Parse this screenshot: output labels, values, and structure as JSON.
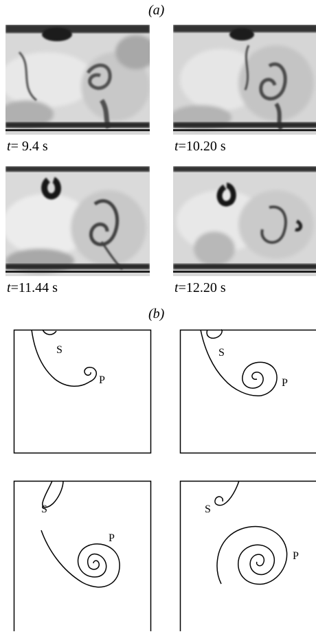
{
  "part_a": {
    "label": "(a)"
  },
  "part_b": {
    "label": "(b)"
  },
  "photos": [
    {
      "t_symbol": "t",
      "time": "= 9.4 s"
    },
    {
      "t_symbol": "t",
      "time": "=10.20 s"
    },
    {
      "t_symbol": "t",
      "time": "=11.44 s"
    },
    {
      "t_symbol": "t",
      "time": "=12.20 s"
    }
  ],
  "sketches": [
    {
      "s_label": "S",
      "p_label": "P"
    },
    {
      "s_label": "S",
      "p_label": "P"
    },
    {
      "s_label": "S",
      "p_label": "P"
    },
    {
      "s_label": "S",
      "p_label": "P"
    }
  ]
}
